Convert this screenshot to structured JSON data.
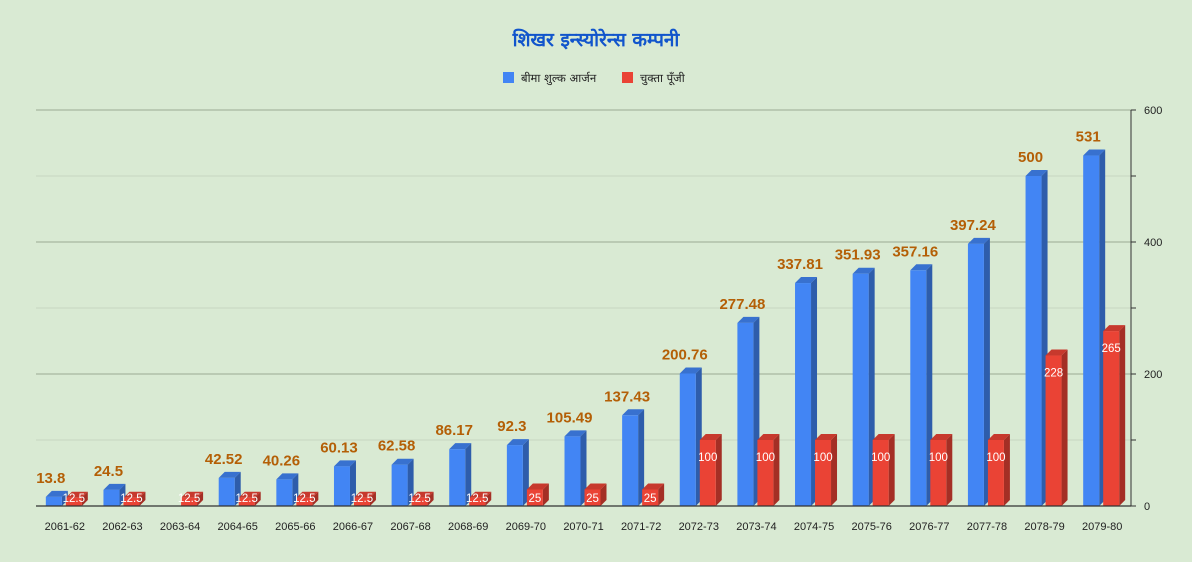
{
  "chart_data": {
    "type": "bar",
    "title": "शिखर इन्स्योरेन्स कम्पनी",
    "xlabel": "",
    "ylabel": "",
    "ylim": [
      0,
      600
    ],
    "yticks": [
      0,
      200,
      400,
      600
    ],
    "legend_position": "top",
    "grid": true,
    "categories": [
      "2061-62",
      "2062-63",
      "2063-64",
      "2064-65",
      "2065-66",
      "2066-67",
      "2067-68",
      "2068-69",
      "2069-70",
      "2070-71",
      "2071-72",
      "2072-73",
      "2073-74",
      "2074-75",
      "2075-76",
      "2076-77",
      "2077-78",
      "2078-79",
      "2079-80"
    ],
    "series": [
      {
        "name": "बीमा शुल्क आर्जन",
        "color": "#4285f4",
        "values": [
          13.8,
          24.5,
          0,
          42.52,
          40.26,
          60.13,
          62.58,
          86.17,
          92.3,
          105.49,
          137.43,
          200.76,
          277.48,
          337.81,
          351.93,
          357.16,
          397.24,
          500,
          531
        ],
        "labels": [
          "13.8",
          "24.5",
          "",
          "42.52",
          "40.26",
          "60.13",
          "62.58",
          "86.17",
          "92.3",
          "105.49",
          "137.43",
          "200.76",
          "277.48",
          "337.81",
          "351.93",
          "357.16",
          "397.24",
          "500",
          "531"
        ]
      },
      {
        "name": "चुक्ता पूँजी",
        "color": "#ea4335",
        "values": [
          12.5,
          12.5,
          12.5,
          12.5,
          12.5,
          12.5,
          12.5,
          12.5,
          25,
          25,
          25,
          100,
          100,
          100,
          100,
          100,
          100,
          228,
          265
        ],
        "labels": [
          "12.5",
          "12.5",
          "12.5",
          "12.5",
          "12.5",
          "12.5",
          "12.5",
          "12.5",
          "25",
          "25",
          "25",
          "100",
          "100",
          "100",
          "100",
          "100",
          "100",
          "228",
          "265"
        ]
      }
    ],
    "colors": {
      "title": "#1155cc",
      "value_label": "#b45f06",
      "background": "#d9ead3",
      "gridline": "#b8c7b1",
      "axis": "#333333"
    }
  }
}
